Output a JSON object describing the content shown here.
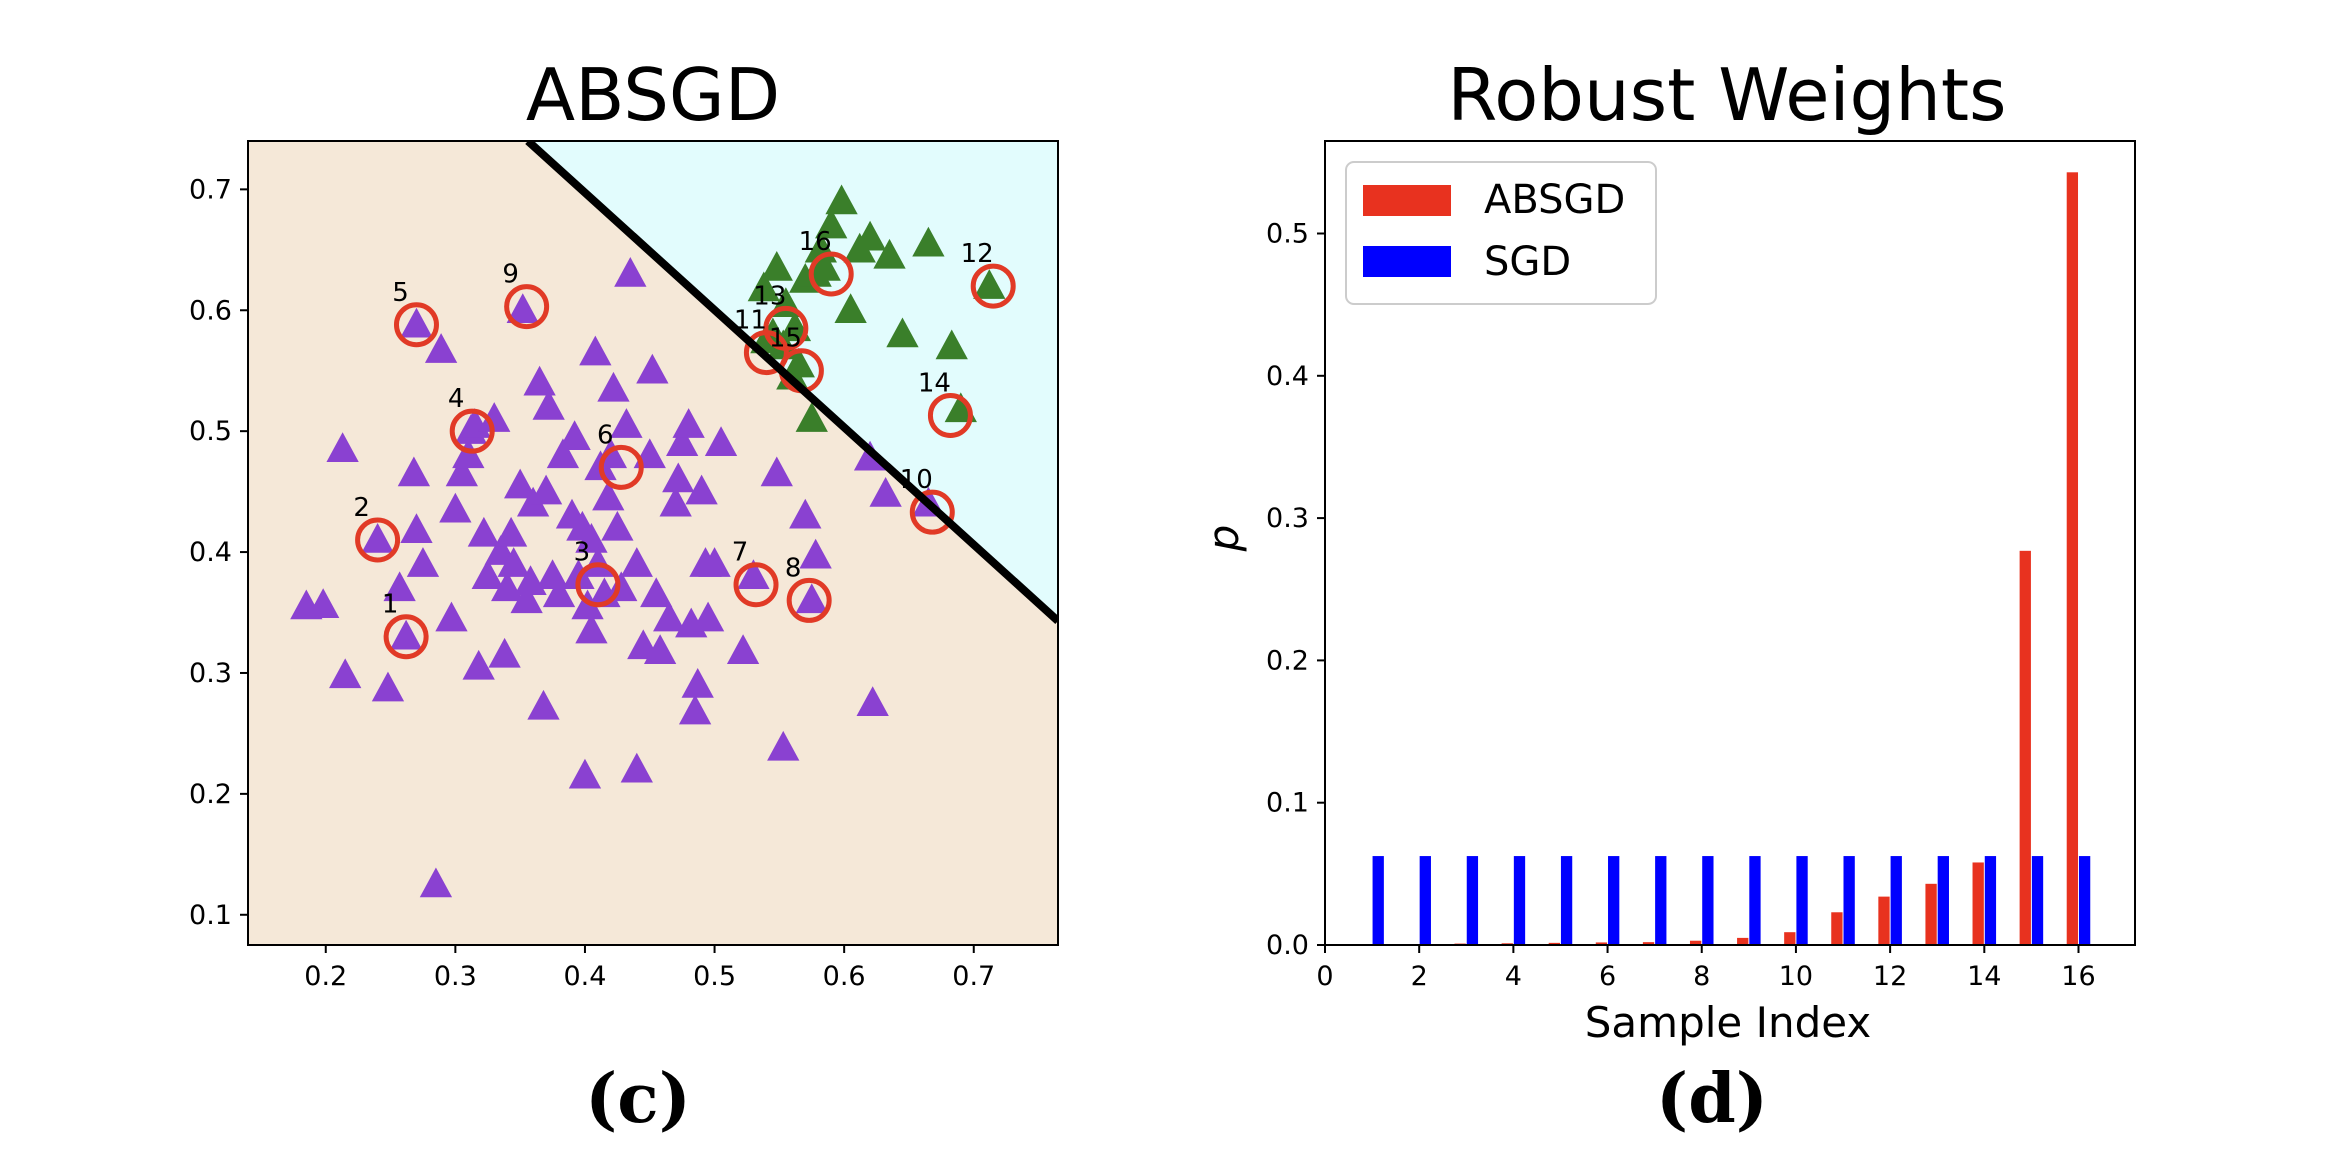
{
  "colors": {
    "region_a": "#f5e8d8",
    "region_b": "#e2fcfd",
    "purple": "#8a41d1",
    "green": "#3a7f2a",
    "circle": "#e13a26",
    "boundary": "#000000",
    "bar_absgd": "#e8321f",
    "bar_sgd": "#0000ff"
  },
  "captions": {
    "left": "(c)",
    "right": "(d)"
  },
  "chart_data": [
    {
      "type": "scatter",
      "title": "ABSGD",
      "xlim": [
        0.14,
        0.765
      ],
      "ylim": [
        0.075,
        0.74
      ],
      "xticks": [
        0.2,
        0.3,
        0.4,
        0.5,
        0.6,
        0.7
      ],
      "yticks": [
        0.1,
        0.2,
        0.3,
        0.4,
        0.5,
        0.6,
        0.7
      ],
      "xtick_labels": [
        "0.2",
        "0.3",
        "0.4",
        "0.5",
        "0.6",
        "0.7"
      ],
      "ytick_labels": [
        "0.1",
        "0.2",
        "0.3",
        "0.4",
        "0.5",
        "0.6",
        "0.7"
      ],
      "decision_boundary": {
        "from": [
          0.356,
          0.74
        ],
        "to": [
          0.765,
          0.343
        ]
      },
      "series": [
        {
          "name": "class_purple",
          "marker": "triangle",
          "points": [
            [
              0.185,
              0.355
            ],
            [
              0.198,
              0.356
            ],
            [
              0.213,
              0.485
            ],
            [
              0.215,
              0.298
            ],
            [
              0.248,
              0.287
            ],
            [
              0.24,
              0.41
            ],
            [
              0.257,
              0.37
            ],
            [
              0.262,
              0.33
            ],
            [
              0.268,
              0.465
            ],
            [
              0.27,
              0.588
            ],
            [
              0.27,
              0.418
            ],
            [
              0.275,
              0.39
            ],
            [
              0.285,
              0.125
            ],
            [
              0.289,
              0.567
            ],
            [
              0.297,
              0.345
            ],
            [
              0.3,
              0.435
            ],
            [
              0.305,
              0.465
            ],
            [
              0.31,
              0.48
            ],
            [
              0.312,
              0.5
            ],
            [
              0.315,
              0.505
            ],
            [
              0.318,
              0.305
            ],
            [
              0.322,
              0.415
            ],
            [
              0.325,
              0.38
            ],
            [
              0.33,
              0.51
            ],
            [
              0.335,
              0.4
            ],
            [
              0.338,
              0.315
            ],
            [
              0.34,
              0.37
            ],
            [
              0.343,
              0.415
            ],
            [
              0.345,
              0.39
            ],
            [
              0.35,
              0.455
            ],
            [
              0.352,
              0.6
            ],
            [
              0.355,
              0.36
            ],
            [
              0.358,
              0.375
            ],
            [
              0.36,
              0.44
            ],
            [
              0.365,
              0.54
            ],
            [
              0.368,
              0.272
            ],
            [
              0.37,
              0.45
            ],
            [
              0.372,
              0.52
            ],
            [
              0.375,
              0.38
            ],
            [
              0.38,
              0.365
            ],
            [
              0.383,
              0.48
            ],
            [
              0.39,
              0.43
            ],
            [
              0.392,
              0.495
            ],
            [
              0.395,
              0.38
            ],
            [
              0.398,
              0.42
            ],
            [
              0.4,
              0.215
            ],
            [
              0.402,
              0.355
            ],
            [
              0.405,
              0.335
            ],
            [
              0.405,
              0.41
            ],
            [
              0.408,
              0.565
            ],
            [
              0.41,
              0.39
            ],
            [
              0.412,
              0.47
            ],
            [
              0.415,
              0.365
            ],
            [
              0.418,
              0.445
            ],
            [
              0.42,
              0.48
            ],
            [
              0.422,
              0.535
            ],
            [
              0.425,
              0.42
            ],
            [
              0.428,
              0.37
            ],
            [
              0.432,
              0.505
            ],
            [
              0.435,
              0.63
            ],
            [
              0.44,
              0.22
            ],
            [
              0.44,
              0.39
            ],
            [
              0.445,
              0.322
            ],
            [
              0.45,
              0.48
            ],
            [
              0.452,
              0.55
            ],
            [
              0.455,
              0.365
            ],
            [
              0.458,
              0.318
            ],
            [
              0.465,
              0.345
            ],
            [
              0.47,
              0.44
            ],
            [
              0.472,
              0.46
            ],
            [
              0.475,
              0.49
            ],
            [
              0.48,
              0.505
            ],
            [
              0.482,
              0.34
            ],
            [
              0.485,
              0.268
            ],
            [
              0.487,
              0.29
            ],
            [
              0.49,
              0.45
            ],
            [
              0.493,
              0.39
            ],
            [
              0.495,
              0.345
            ],
            [
              0.5,
              0.39
            ],
            [
              0.505,
              0.49
            ],
            [
              0.522,
              0.318
            ],
            [
              0.53,
              0.38
            ],
            [
              0.548,
              0.465
            ],
            [
              0.553,
              0.238
            ],
            [
              0.57,
              0.43
            ],
            [
              0.575,
              0.36
            ],
            [
              0.578,
              0.397
            ],
            [
              0.62,
              0.478
            ],
            [
              0.622,
              0.275
            ],
            [
              0.632,
              0.448
            ],
            [
              0.665,
              0.44
            ]
          ]
        },
        {
          "name": "class_green",
          "marker": "triangle",
          "points": [
            [
              0.538,
              0.618
            ],
            [
              0.545,
              0.58
            ],
            [
              0.548,
              0.635
            ],
            [
              0.553,
              0.57
            ],
            [
              0.555,
              0.605
            ],
            [
              0.56,
              0.545
            ],
            [
              0.562,
              0.585
            ],
            [
              0.565,
              0.555
            ],
            [
              0.57,
              0.625
            ],
            [
              0.575,
              0.51
            ],
            [
              0.578,
              0.63
            ],
            [
              0.582,
              0.65
            ],
            [
              0.585,
              0.635
            ],
            [
              0.59,
              0.67
            ],
            [
              0.598,
              0.69
            ],
            [
              0.605,
              0.6
            ],
            [
              0.612,
              0.65
            ],
            [
              0.62,
              0.66
            ],
            [
              0.635,
              0.645
            ],
            [
              0.645,
              0.58
            ],
            [
              0.665,
              0.655
            ],
            [
              0.683,
              0.57
            ],
            [
              0.69,
              0.518
            ],
            [
              0.712,
              0.62
            ],
            [
              0.54,
              0.575
            ]
          ]
        }
      ],
      "annotations": [
        {
          "label": "1",
          "x": 0.262,
          "y": 0.33
        },
        {
          "label": "2",
          "x": 0.24,
          "y": 0.41
        },
        {
          "label": "3",
          "x": 0.41,
          "y": 0.373
        },
        {
          "label": "4",
          "x": 0.313,
          "y": 0.5
        },
        {
          "label": "5",
          "x": 0.27,
          "y": 0.588
        },
        {
          "label": "6",
          "x": 0.428,
          "y": 0.47
        },
        {
          "label": "7",
          "x": 0.532,
          "y": 0.373
        },
        {
          "label": "8",
          "x": 0.573,
          "y": 0.36
        },
        {
          "label": "9",
          "x": 0.355,
          "y": 0.603
        },
        {
          "label": "10",
          "x": 0.668,
          "y": 0.433
        },
        {
          "label": "11",
          "x": 0.54,
          "y": 0.565
        },
        {
          "label": "12",
          "x": 0.715,
          "y": 0.62
        },
        {
          "label": "13",
          "x": 0.555,
          "y": 0.585
        },
        {
          "label": "14",
          "x": 0.682,
          "y": 0.513
        },
        {
          "label": "15",
          "x": 0.567,
          "y": 0.55
        },
        {
          "label": "16",
          "x": 0.59,
          "y": 0.63
        }
      ]
    },
    {
      "type": "bar",
      "title": "Robust Weights",
      "xlabel": "Sample Index",
      "ylabel": "p",
      "xlim": [
        0,
        17.2
      ],
      "ylim": [
        0,
        0.565
      ],
      "xticks": [
        0,
        2,
        4,
        6,
        8,
        10,
        12,
        14,
        16
      ],
      "yticks": [
        0.0,
        0.1,
        0.2,
        0.3,
        0.4,
        0.5
      ],
      "xtick_labels": [
        "0",
        "2",
        "4",
        "6",
        "8",
        "10",
        "12",
        "14",
        "16"
      ],
      "ytick_labels": [
        "0.0",
        "0.1",
        "0.2",
        "0.3",
        "0.4",
        "0.5"
      ],
      "categories": [
        1,
        2,
        3,
        4,
        5,
        6,
        7,
        8,
        9,
        10,
        11,
        12,
        13,
        14,
        15,
        16
      ],
      "legend": {
        "location": "upper left"
      },
      "series": [
        {
          "name": "ABSGD",
          "offset": -0.13,
          "values": [
            0.0,
            0.0005,
            0.001,
            0.0012,
            0.0015,
            0.0018,
            0.002,
            0.003,
            0.005,
            0.009,
            0.023,
            0.034,
            0.043,
            0.058,
            0.277,
            0.543
          ]
        },
        {
          "name": "SGD",
          "offset": 0.13,
          "values": [
            0.0625,
            0.0625,
            0.0625,
            0.0625,
            0.0625,
            0.0625,
            0.0625,
            0.0625,
            0.0625,
            0.0625,
            0.0625,
            0.0625,
            0.0625,
            0.0625,
            0.0625,
            0.0625
          ]
        }
      ]
    }
  ]
}
